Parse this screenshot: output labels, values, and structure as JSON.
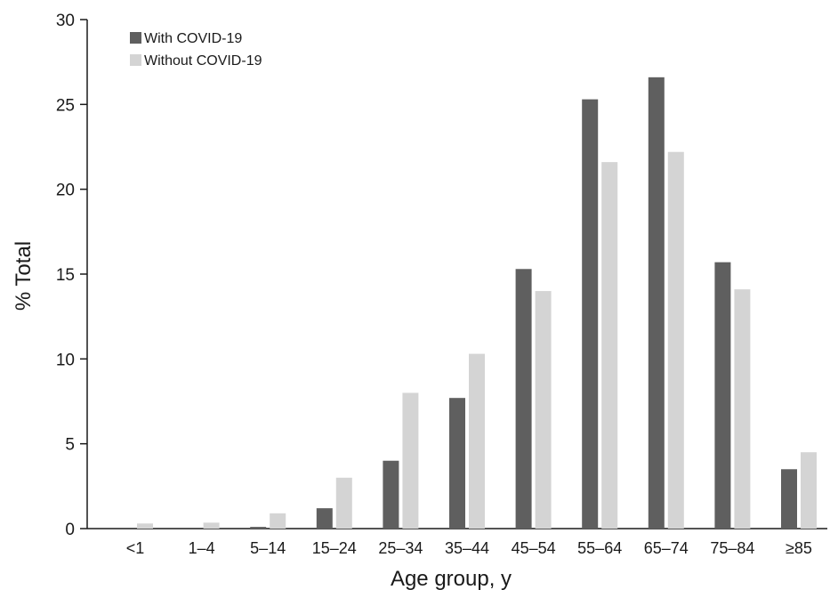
{
  "chart_data": {
    "type": "bar",
    "title": "",
    "xlabel": "Age group, y",
    "ylabel": "% Total",
    "ylim": [
      0,
      30
    ],
    "yticks": [
      0,
      5,
      10,
      15,
      20,
      25,
      30
    ],
    "categories": [
      "<1",
      "1–4",
      "5–14",
      "15–24",
      "25–34",
      "35–44",
      "45–54",
      "55–64",
      "65–74",
      "75–84",
      "≥85"
    ],
    "series": [
      {
        "name": "With COVID-19",
        "color": "#5f5f5f",
        "values": [
          0.0,
          0.0,
          0.1,
          1.2,
          4.0,
          7.7,
          15.3,
          25.3,
          26.6,
          15.7,
          3.5
        ]
      },
      {
        "name": "Without COVID-19",
        "color": "#d4d4d4",
        "values": [
          0.3,
          0.35,
          0.9,
          3.0,
          8.0,
          10.3,
          14.0,
          21.6,
          22.2,
          14.1,
          4.5
        ]
      }
    ],
    "legend_position": "top-left",
    "grid": false
  }
}
